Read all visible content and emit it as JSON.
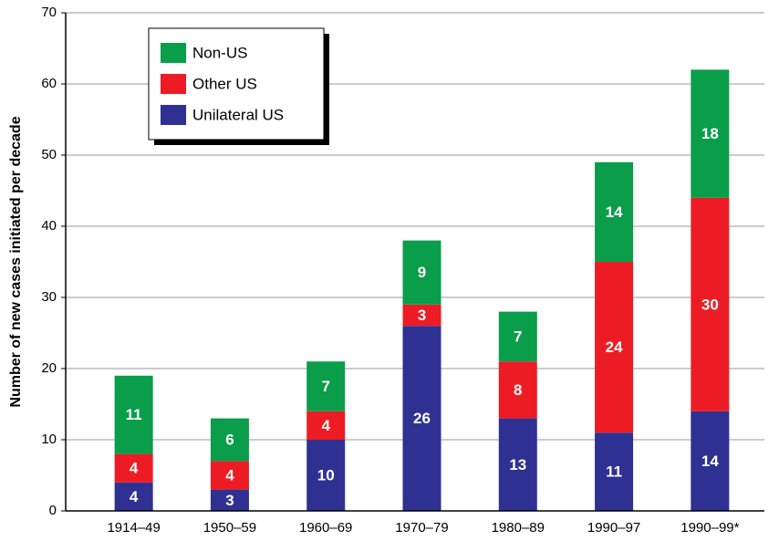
{
  "chart_data": {
    "type": "stacked_bar",
    "y_label": "Number of new cases initiated per decade",
    "categories": [
      "1914–49",
      "1950–59",
      "1960–69",
      "1970–79",
      "1980–89",
      "1990–97",
      "1990–99*"
    ],
    "series": [
      {
        "name": "Unilateral US",
        "color": "#2e3192",
        "values": [
          4,
          3,
          10,
          26,
          13,
          11,
          14
        ]
      },
      {
        "name": "Other US",
        "color": "#ed1c24",
        "values": [
          4,
          4,
          4,
          3,
          8,
          24,
          30
        ]
      },
      {
        "name": "Non-US",
        "color": "#0a9d4a",
        "values": [
          11,
          6,
          7,
          9,
          7,
          14,
          18
        ]
      }
    ],
    "ylim": [
      0,
      70
    ],
    "yticks": [
      0,
      10,
      20,
      30,
      40,
      50,
      60,
      70
    ],
    "grid": true
  }
}
